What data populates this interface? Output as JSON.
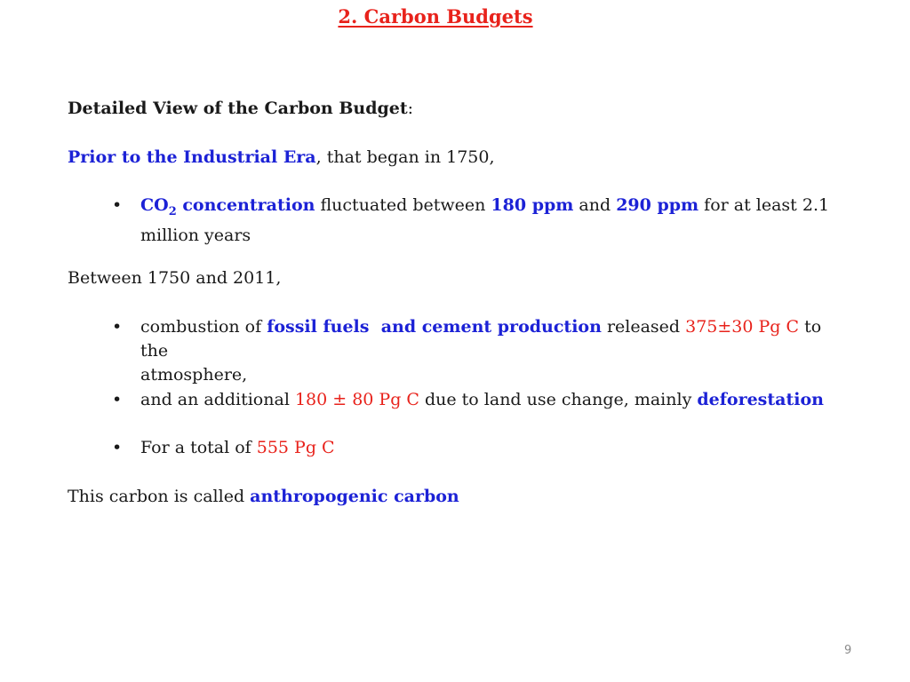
{
  "title": "2. Carbon Budgets",
  "heading": {
    "bold": "Detailed View of the Carbon Budget",
    "colon": ":"
  },
  "prior": {
    "highlight": "Prior to the Industrial Era",
    "rest": ", that began in 1750,"
  },
  "bullet1": {
    "co": "CO",
    "sub": "2",
    "concentration": " concentration",
    "t1": " fluctuated between ",
    "v1": "180 ppm",
    "t2": " and ",
    "v2": "290 ppm",
    "t3": " for at least 2.1",
    "line2": "million years"
  },
  "between": "Between 1750 and 2011,",
  "bullet2": {
    "t1": "combustion of ",
    "hl": "fossil fuels  and cement production",
    "t2": " released ",
    "val": "375±30 Pg C",
    "t3": " to the",
    "line2": "atmosphere,"
  },
  "bullet3": {
    "t1": "and an additional ",
    "val": "180 ± 80 Pg C",
    "t2": " due to land use change, mainly ",
    "hl": "deforestation"
  },
  "bullet4": {
    "t1": "For a total of ",
    "val": "555 Pg C"
  },
  "closing": {
    "t1": "This carbon is called ",
    "hl": "anthropogenic carbon"
  },
  "bullet_char": "•",
  "page_number": "9",
  "colors": {
    "title_red": "#e8221b",
    "highlight_blue": "#1c22d6",
    "value_red": "#e8221b"
  }
}
